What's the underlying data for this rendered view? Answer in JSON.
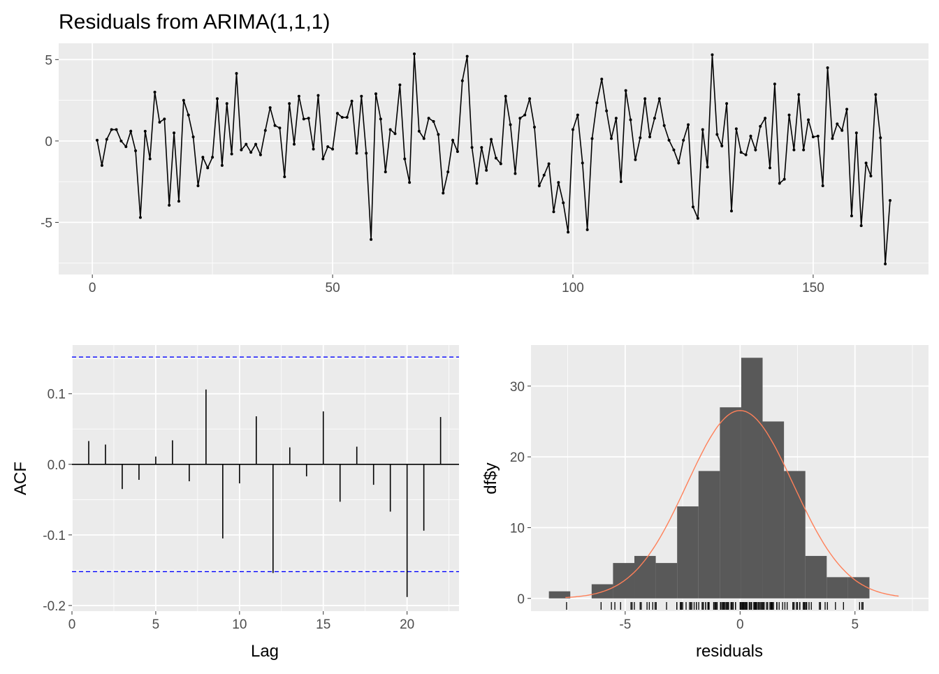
{
  "chart_data": [
    {
      "type": "line",
      "title": "Residuals from ARIMA(1,1,1)",
      "xlabel": "",
      "ylabel": "",
      "xlim": [
        -7,
        174
      ],
      "ylim": [
        -8.2,
        6.0
      ],
      "xticks": [
        0,
        50,
        100,
        150
      ],
      "xtick_labels": [
        "0",
        "50",
        "100",
        "150"
      ],
      "yticks": [
        5,
        0,
        -5
      ],
      "ytick_labels": [
        "5",
        "0",
        "-5"
      ],
      "grid": true,
      "line_color": "#000000",
      "x_start": 1,
      "values": [
        0.05,
        -1.5,
        0.1,
        0.7,
        0.7,
        0,
        -0.35,
        0.6,
        -0.6,
        -4.7,
        0.6,
        -1.1,
        3.0,
        1.15,
        1.35,
        -3.95,
        0.5,
        -3.7,
        2.5,
        1.6,
        0.25,
        -2.75,
        -1.0,
        -1.65,
        -1.0,
        2.6,
        -1.5,
        2.3,
        -0.8,
        4.15,
        -0.55,
        -0.2,
        -0.7,
        -0.2,
        -0.85,
        0.65,
        2.05,
        0.95,
        0.8,
        -2.2,
        2.3,
        -0.2,
        2.75,
        1.35,
        1.4,
        -0.5,
        2.8,
        -1.1,
        -0.35,
        -0.5,
        1.7,
        1.45,
        1.45,
        2.45,
        -0.75,
        2.75,
        -0.75,
        -6.05,
        2.9,
        1.35,
        -1.9,
        0.7,
        0.45,
        3.45,
        -1.1,
        -2.55,
        5.35,
        0.6,
        0.15,
        1.4,
        1.2,
        0.4,
        -3.2,
        -1.9,
        0.05,
        -0.65,
        3.7,
        5.2,
        -0.4,
        -2.6,
        -0.4,
        -1.8,
        0.1,
        -1.05,
        -1.4,
        2.75,
        1.0,
        -2.0,
        1.4,
        1.6,
        2.6,
        0.85,
        -2.75,
        -2.1,
        -1.4,
        -4.35,
        -2.55,
        -3.8,
        -5.6,
        0.7,
        1.6,
        -1.35,
        -5.45,
        0.15,
        2.35,
        3.8,
        1.85,
        0.15,
        1.4,
        -2.5,
        3.1,
        1.3,
        -1.15,
        0.2,
        2.6,
        0.25,
        1.4,
        2.6,
        0.95,
        0.05,
        -0.55,
        -1.35,
        0.05,
        1.0,
        -4.05,
        -4.75,
        0.7,
        -1.6,
        5.3,
        0.4,
        -0.3,
        2.3,
        -4.3,
        0.75,
        -0.7,
        -0.85,
        0.3,
        -0.55,
        0.9,
        1.4,
        -1.65,
        3.5,
        -2.6,
        -2.35,
        1.6,
        -0.55,
        2.85,
        -0.55,
        1.3,
        0.25,
        0.3,
        -2.75,
        4.5,
        0.15,
        1.05,
        0.65,
        1.95,
        -4.6,
        0.5,
        -5.2,
        -1.35,
        -2.15,
        2.85,
        0.2,
        -7.55,
        -3.65
      ]
    },
    {
      "type": "bar",
      "subtype": "acf",
      "xlabel": "Lag",
      "ylabel": "ACF",
      "xlim": [
        0,
        23.1
      ],
      "ylim": [
        -0.208,
        0.169
      ],
      "xticks": [
        0,
        5,
        10,
        15,
        20
      ],
      "xtick_labels": [
        "0",
        "5",
        "10",
        "15",
        "20"
      ],
      "yticks": [
        0.1,
        0.0,
        -0.1,
        -0.2
      ],
      "ytick_labels": [
        "0.1",
        "0.0",
        "-0.1",
        "-0.2"
      ],
      "grid": true,
      "lags": [
        1,
        2,
        3,
        4,
        5,
        6,
        7,
        8,
        9,
        10,
        11,
        12,
        13,
        14,
        15,
        16,
        17,
        18,
        19,
        20,
        21,
        22
      ],
      "values": [
        0.033,
        0.028,
        -0.035,
        -0.022,
        0.011,
        0.034,
        -0.024,
        0.106,
        -0.105,
        -0.027,
        0.068,
        -0.154,
        0.024,
        -0.017,
        0.075,
        -0.053,
        0.025,
        -0.029,
        -0.067,
        -0.188,
        -0.094,
        0.067
      ],
      "confidence_bounds": [
        0.152,
        -0.152
      ],
      "ci_color": "#0000FF"
    },
    {
      "type": "bar",
      "subtype": "histogram",
      "xlabel": "residuals",
      "ylabel": "df$y",
      "xlim": [
        -9.1,
        8.2
      ],
      "ylim": [
        -1.8,
        35.8
      ],
      "xticks": [
        -5,
        0,
        5
      ],
      "xtick_labels": [
        "-5",
        "0",
        "5"
      ],
      "yticks": [
        0,
        10,
        20,
        30
      ],
      "ytick_labels": [
        "0",
        "10",
        "20",
        "30"
      ],
      "grid": true,
      "bin_start": -8.32,
      "bin_width": 0.93,
      "counts": [
        1,
        0,
        2,
        5,
        6,
        5,
        13,
        18,
        27,
        34,
        25,
        18,
        6,
        3,
        3
      ],
      "bar_color": "#595959",
      "density_curve": {
        "type": "normal",
        "mean": 0.0,
        "sd": 2.32,
        "from": -7.6,
        "to": 6.9,
        "color": "#FF8059"
      },
      "rug": true
    }
  ]
}
